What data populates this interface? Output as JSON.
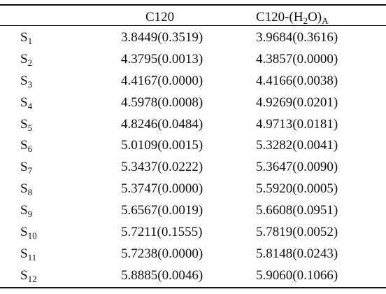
{
  "headers": {
    "state": "",
    "col_a": "C120",
    "col_b_prefix": "C120-(H",
    "col_b_sub1": "2",
    "col_b_mid": "O)",
    "col_b_sub2": "A"
  },
  "rows": [
    {
      "state_letter": "S",
      "state_index": "1",
      "c120": "3.8449(0.3519)",
      "c120_h2o": "3.9684(0.3616)"
    },
    {
      "state_letter": "S",
      "state_index": "2",
      "c120": "4.3795(0.0013)",
      "c120_h2o": "4.3857(0.0000)"
    },
    {
      "state_letter": "S",
      "state_index": "3",
      "c120": "4.4167(0.0000)",
      "c120_h2o": "4.4166(0.0038)"
    },
    {
      "state_letter": "S",
      "state_index": "4",
      "c120": "4.5978(0.0008)",
      "c120_h2o": "4.9269(0.0201)"
    },
    {
      "state_letter": "S",
      "state_index": "5",
      "c120": "4.8246(0.0484)",
      "c120_h2o": "4.9713(0.0181)"
    },
    {
      "state_letter": "S",
      "state_index": "6",
      "c120": "5.0109(0.0015)",
      "c120_h2o": "5.3282(0.0041)"
    },
    {
      "state_letter": "S",
      "state_index": "7",
      "c120": "5.3437(0.0222)",
      "c120_h2o": "5.3647(0.0090)"
    },
    {
      "state_letter": "S",
      "state_index": "8",
      "c120": "5.3747(0.0000)",
      "c120_h2o": "5.5920(0.0005)"
    },
    {
      "state_letter": "S",
      "state_index": "9",
      "c120": "5.6567(0.0019)",
      "c120_h2o": "5.6608(0.0951)"
    },
    {
      "state_letter": "S",
      "state_index": "10",
      "c120": "5.7211(0.1555)",
      "c120_h2o": "5.7819(0.0052)"
    },
    {
      "state_letter": "S",
      "state_index": "11",
      "c120": "5.7238(0.0000)",
      "c120_h2o": "5.8148(0.0243)"
    },
    {
      "state_letter": "S",
      "state_index": "12",
      "c120": "5.8885(0.0046)",
      "c120_h2o": "5.9060(0.1066)"
    }
  ]
}
